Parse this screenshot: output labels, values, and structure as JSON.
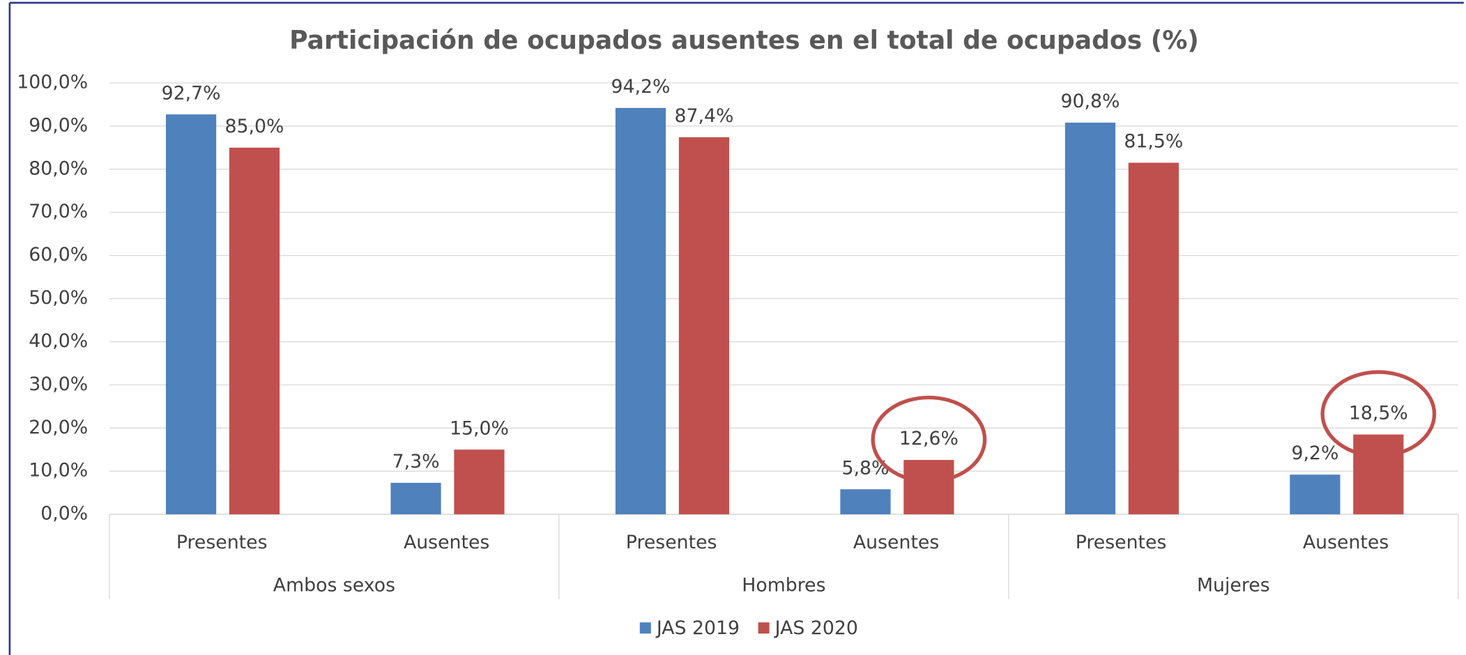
{
  "chart_data": {
    "type": "bar",
    "title": "Participación de ocupados ausentes en el total de ocupados (%)",
    "groups": [
      "Ambos sexos",
      "Hombres",
      "Mujeres"
    ],
    "categories": [
      "Presentes",
      "Ausentes",
      "Presentes",
      "Ausentes",
      "Presentes",
      "Ausentes"
    ],
    "series": [
      {
        "name": "JAS 2019",
        "color": "#4f81bd",
        "values": [
          92.7,
          7.3,
          94.2,
          5.8,
          90.8,
          9.2
        ],
        "value_labels": [
          "92,7%",
          "7,3%",
          "94,2%",
          "5,8%",
          "90,8%",
          "9,2%"
        ]
      },
      {
        "name": "JAS 2020",
        "color": "#c0504d",
        "values": [
          85.0,
          15.0,
          87.4,
          12.6,
          81.5,
          18.5
        ],
        "value_labels": [
          "85,0%",
          "15,0%",
          "87,4%",
          "12,6%",
          "81,5%",
          "18,5%"
        ]
      }
    ],
    "ylim": [
      0,
      100
    ],
    "yticks": [
      {
        "value": 0,
        "label": "0,0%"
      },
      {
        "value": 10,
        "label": "10,0%"
      },
      {
        "value": 20,
        "label": "20,0%"
      },
      {
        "value": 30,
        "label": "30,0%"
      },
      {
        "value": 40,
        "label": "40,0%"
      },
      {
        "value": 50,
        "label": "50,0%"
      },
      {
        "value": 60,
        "label": "60,0%"
      },
      {
        "value": 70,
        "label": "70,0%"
      },
      {
        "value": 80,
        "label": "80,0%"
      },
      {
        "value": 90,
        "label": "90,0%"
      },
      {
        "value": 100,
        "label": "100,0%"
      }
    ],
    "grid": true,
    "legend": "bottom"
  }
}
